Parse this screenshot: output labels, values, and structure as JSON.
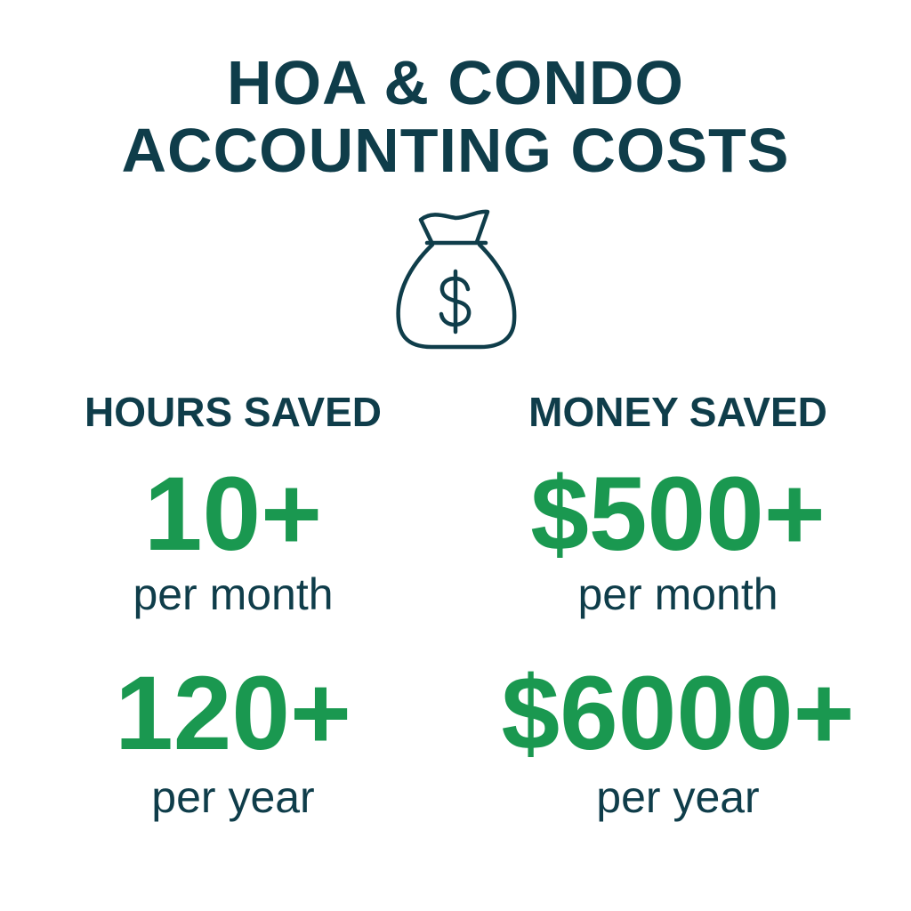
{
  "title": {
    "line1": "HOA & CONDO",
    "line2": "ACCOUNTING COSTS"
  },
  "icon": "money-bag-dollar-icon",
  "colors": {
    "dark": "#0f3d4a",
    "green": "#1a9850"
  },
  "hours": {
    "heading": "HOURS SAVED",
    "monthly_value": "10+",
    "monthly_label": "per month",
    "yearly_value": "120+",
    "yearly_label": "per year"
  },
  "money": {
    "heading": "MONEY SAVED",
    "monthly_value": "$500+",
    "monthly_label": "per month",
    "yearly_value": "$6000+",
    "yearly_label": "per year"
  }
}
